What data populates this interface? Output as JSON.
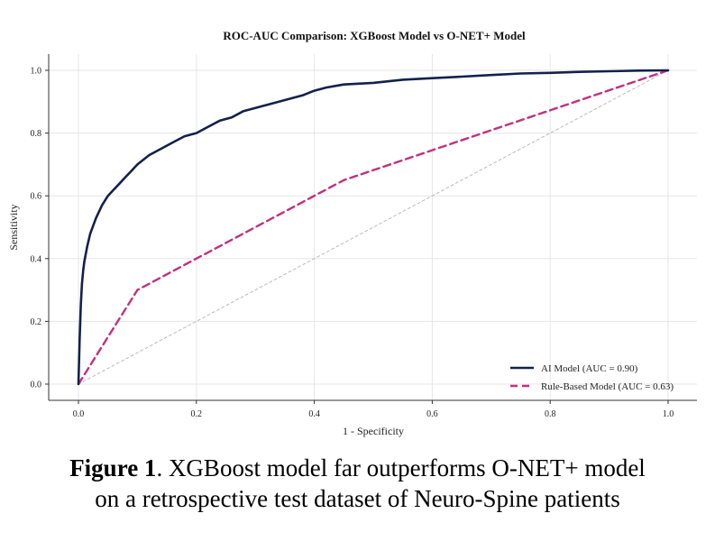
{
  "chart_data": {
    "type": "line",
    "title": "ROC-AUC Comparison: XGBoost Model vs O-NET+ Model",
    "xlabel": "1 - Specificity",
    "ylabel": "Sensitivity",
    "xlim": [
      0,
      1
    ],
    "ylim": [
      0,
      1
    ],
    "xticks": [
      "0.0",
      "0.2",
      "0.4",
      "0.6",
      "0.8",
      "1.0"
    ],
    "yticks": [
      "0.0",
      "0.2",
      "0.4",
      "0.6",
      "0.8",
      "1.0"
    ],
    "grid": true,
    "legend_position": "bottom-right",
    "series": [
      {
        "name": "AI Model (AUC = 0.90)",
        "color": "#14214d",
        "style": "solid",
        "x": [
          0,
          0.002,
          0.004,
          0.006,
          0.008,
          0.01,
          0.015,
          0.02,
          0.03,
          0.04,
          0.05,
          0.06,
          0.07,
          0.08,
          0.09,
          0.1,
          0.12,
          0.14,
          0.16,
          0.18,
          0.2,
          0.22,
          0.24,
          0.26,
          0.28,
          0.3,
          0.32,
          0.34,
          0.36,
          0.38,
          0.4,
          0.42,
          0.45,
          0.5,
          0.55,
          0.6,
          0.65,
          0.7,
          0.75,
          0.8,
          0.85,
          0.9,
          0.95,
          1.0
        ],
        "y": [
          0,
          0.14,
          0.25,
          0.32,
          0.36,
          0.39,
          0.44,
          0.48,
          0.53,
          0.57,
          0.6,
          0.62,
          0.64,
          0.66,
          0.68,
          0.7,
          0.73,
          0.75,
          0.77,
          0.79,
          0.8,
          0.82,
          0.84,
          0.85,
          0.87,
          0.88,
          0.89,
          0.9,
          0.91,
          0.92,
          0.935,
          0.945,
          0.955,
          0.96,
          0.97,
          0.975,
          0.98,
          0.985,
          0.99,
          0.992,
          0.995,
          0.997,
          0.999,
          1.0
        ]
      },
      {
        "name": "Rule-Based Model (AUC = 0.63)",
        "color": "#c2307e",
        "style": "dashed",
        "x": [
          0,
          0.1,
          0.45,
          1.0
        ],
        "y": [
          0,
          0.3,
          0.65,
          1.0
        ]
      },
      {
        "name": "",
        "color": "#bbbbbb",
        "style": "dotted",
        "x": [
          0,
          1
        ],
        "y": [
          0,
          1
        ]
      }
    ]
  },
  "caption": {
    "bold": "Figure 1",
    "line1_rest": ". XGBoost model far outperforms O-NET+ model",
    "line2": "on a retrospective test dataset of Neuro-Spine patients"
  }
}
